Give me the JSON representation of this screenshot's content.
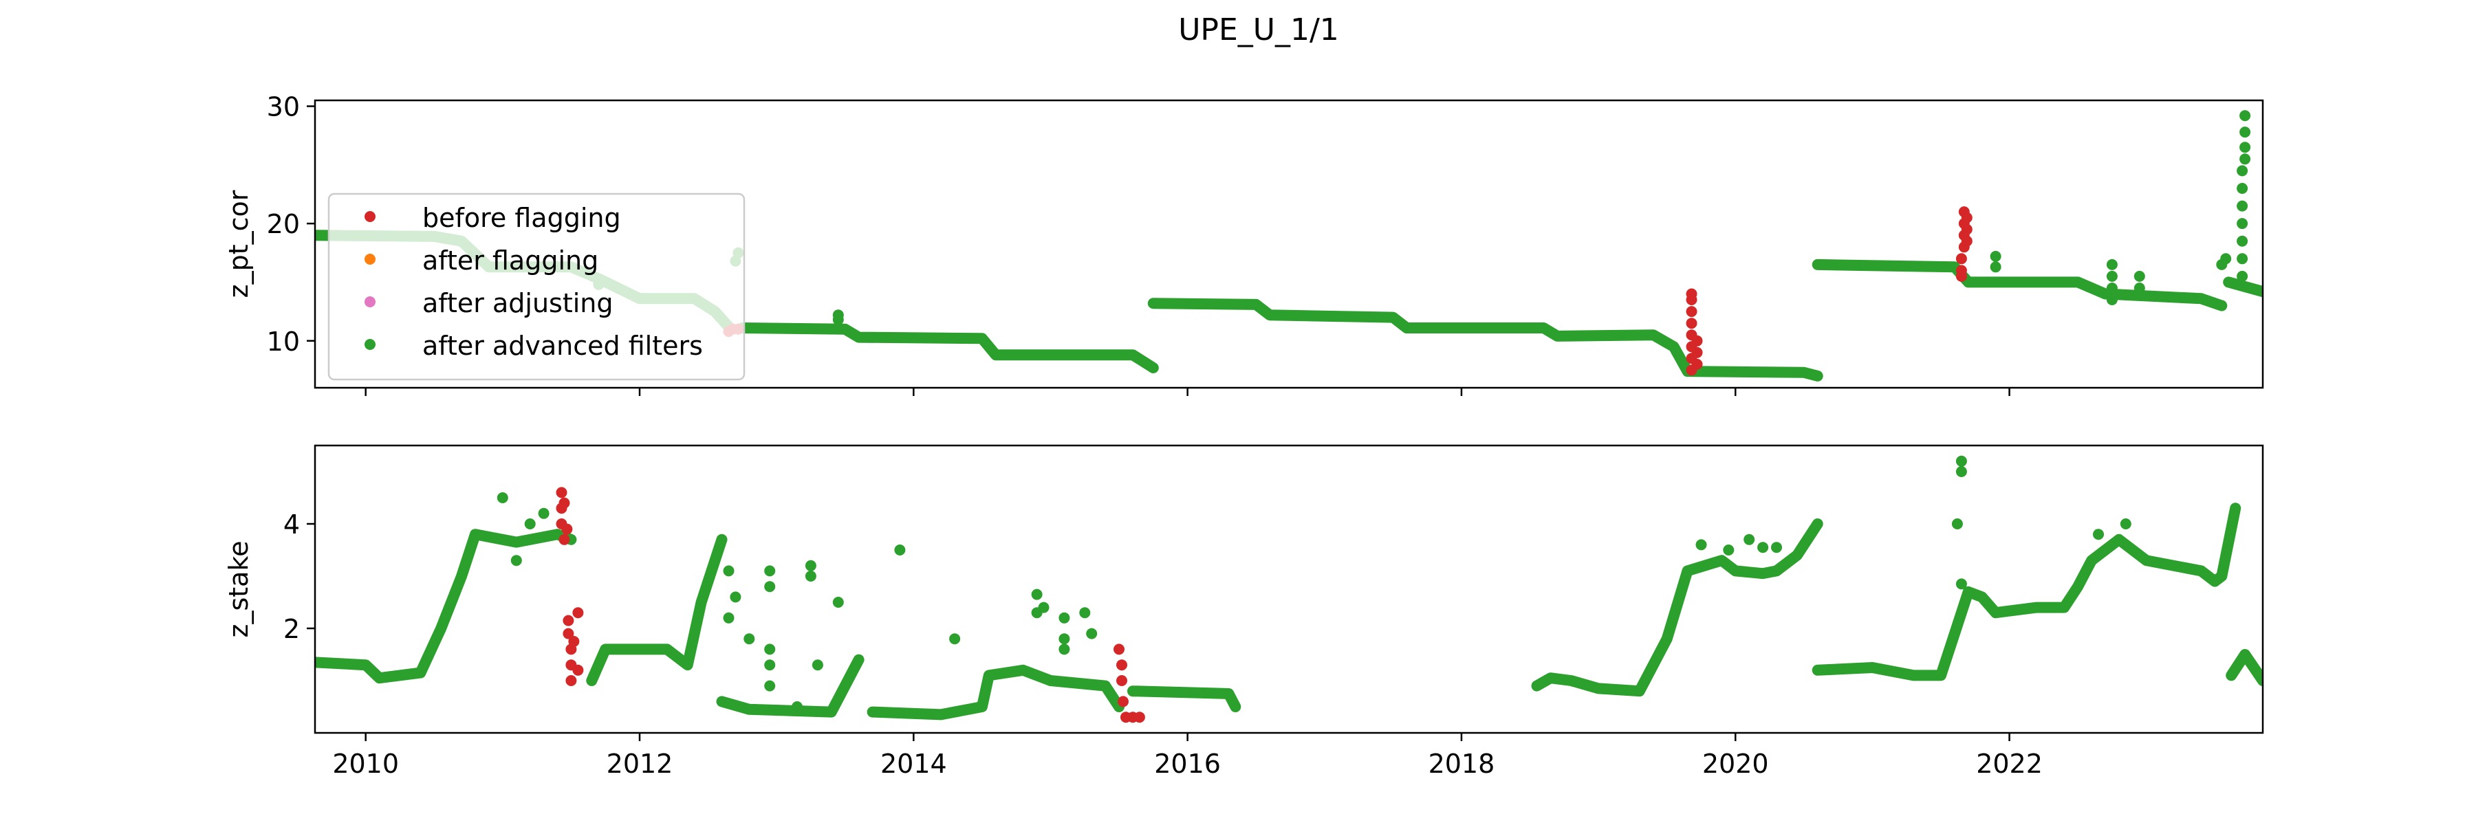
{
  "title": "UPE_U_1/1",
  "colors": {
    "before": "#d62728",
    "after_flagging": "#ff7f0e",
    "after_adjusting": "#e377c2",
    "advanced": "#2ca02c"
  },
  "legend": {
    "placement": "left",
    "entries": [
      {
        "label": "before flagging",
        "color": "#d62728"
      },
      {
        "label": "after flagging",
        "color": "#ff7f0e"
      },
      {
        "label": "after adjusting",
        "color": "#e377c2"
      },
      {
        "label": "after advanced filters",
        "color": "#2ca02c"
      }
    ]
  },
  "chart_data": [
    {
      "type": "scatter",
      "ylabel": "z_pt_cor",
      "xlim": [
        2009.63,
        2023.85
      ],
      "ylim": [
        6,
        30.5
      ],
      "yticks": [
        "10",
        "20",
        "30"
      ],
      "ytick_values": [
        10,
        20,
        30
      ],
      "xtick_values": [
        2010,
        2012,
        2014,
        2016,
        2018,
        2020,
        2022
      ],
      "xticklabels": [],
      "series": [
        {
          "color": "before",
          "kind": "points",
          "points": [
            [
              2012.65,
              10.8
            ],
            [
              2012.68,
              11.0
            ],
            [
              2012.72,
              11.0
            ],
            [
              2019.68,
              7.5
            ],
            [
              2019.68,
              8.5
            ],
            [
              2019.68,
              9.5
            ],
            [
              2019.68,
              10.5
            ],
            [
              2019.68,
              11.5
            ],
            [
              2019.68,
              12.5
            ],
            [
              2019.68,
              13.5
            ],
            [
              2019.68,
              14.0
            ],
            [
              2019.72,
              8.0
            ],
            [
              2019.72,
              9.0
            ],
            [
              2019.72,
              10.0
            ],
            [
              2021.65,
              15.5
            ],
            [
              2021.65,
              16.0
            ],
            [
              2021.65,
              17.0
            ],
            [
              2021.67,
              18.0
            ],
            [
              2021.67,
              19.0
            ],
            [
              2021.67,
              20.0
            ],
            [
              2021.67,
              21.0
            ],
            [
              2021.69,
              18.5
            ],
            [
              2021.69,
              19.5
            ],
            [
              2021.69,
              20.5
            ]
          ]
        },
        {
          "color": "advanced",
          "kind": "track",
          "segments": [
            [
              [
                2009.63,
                19.0
              ],
              [
                2010.5,
                18.9
              ],
              [
                2010.7,
                18.5
              ],
              [
                2010.9,
                16.3
              ],
              [
                2011.5,
                16.3
              ],
              [
                2011.7,
                15.3
              ],
              [
                2012.0,
                13.6
              ],
              [
                2012.4,
                13.6
              ],
              [
                2012.55,
                12.5
              ],
              [
                2012.65,
                11.2
              ]
            ],
            [
              [
                2012.75,
                11.1
              ],
              [
                2013.5,
                11.0
              ],
              [
                2013.6,
                10.3
              ],
              [
                2014.5,
                10.2
              ],
              [
                2014.6,
                8.8
              ],
              [
                2015.6,
                8.8
              ],
              [
                2015.75,
                7.7
              ]
            ],
            [
              [
                2015.75,
                13.2
              ],
              [
                2016.5,
                13.1
              ],
              [
                2016.6,
                12.2
              ],
              [
                2017.5,
                12.0
              ],
              [
                2017.6,
                11.1
              ],
              [
                2018.6,
                11.1
              ],
              [
                2018.7,
                10.4
              ],
              [
                2019.4,
                10.5
              ],
              [
                2019.55,
                9.5
              ],
              [
                2019.65,
                7.4
              ],
              [
                2020.5,
                7.3
              ],
              [
                2020.6,
                7.0
              ]
            ],
            [
              [
                2020.6,
                16.5
              ],
              [
                2021.6,
                16.3
              ],
              [
                2021.7,
                15.0
              ],
              [
                2022.5,
                15.0
              ],
              [
                2022.7,
                14.0
              ],
              [
                2023.4,
                13.6
              ],
              [
                2023.55,
                13.0
              ]
            ],
            [
              [
                2023.6,
                15.0
              ],
              [
                2023.85,
                14.2
              ]
            ]
          ]
        },
        {
          "color": "advanced",
          "kind": "points",
          "points": [
            [
              2011.7,
              14.8
            ],
            [
              2012.7,
              16.8
            ],
            [
              2012.72,
              17.5
            ],
            [
              2013.45,
              12.2
            ],
            [
              2013.45,
              11.8
            ],
            [
              2021.9,
              17.2
            ],
            [
              2021.9,
              16.3
            ],
            [
              2022.75,
              16.5
            ],
            [
              2022.75,
              15.5
            ],
            [
              2022.75,
              14.5
            ],
            [
              2022.75,
              13.5
            ],
            [
              2022.95,
              15.5
            ],
            [
              2022.95,
              14.5
            ],
            [
              2023.55,
              16.5
            ],
            [
              2023.58,
              17.0
            ],
            [
              2023.7,
              15.5
            ],
            [
              2023.7,
              17.0
            ],
            [
              2023.7,
              18.5
            ],
            [
              2023.7,
              20.0
            ],
            [
              2023.7,
              21.5
            ],
            [
              2023.7,
              23.0
            ],
            [
              2023.7,
              24.5
            ],
            [
              2023.72,
              25.5
            ],
            [
              2023.72,
              26.5
            ],
            [
              2023.72,
              27.8
            ],
            [
              2023.72,
              29.2
            ]
          ]
        }
      ]
    },
    {
      "type": "scatter",
      "ylabel": "z_stake",
      "xlim": [
        2009.63,
        2023.85
      ],
      "ylim": [
        0.0,
        5.5
      ],
      "yticks": [
        "2",
        "4"
      ],
      "ytick_values": [
        2,
        4
      ],
      "xtick_values": [
        2010,
        2012,
        2014,
        2016,
        2018,
        2020,
        2022
      ],
      "xticklabels": [
        "2010",
        "2012",
        "2014",
        "2016",
        "2018",
        "2020",
        "2022"
      ],
      "series": [
        {
          "color": "advanced",
          "kind": "track",
          "segments": [
            [
              [
                2009.63,
                1.35
              ],
              [
                2010.0,
                1.3
              ],
              [
                2010.1,
                1.05
              ],
              [
                2010.4,
                1.15
              ],
              [
                2010.55,
                2.0
              ],
              [
                2010.7,
                3.0
              ],
              [
                2010.8,
                3.8
              ],
              [
                2011.1,
                3.65
              ],
              [
                2011.4,
                3.8
              ],
              [
                2011.5,
                3.7
              ]
            ],
            [
              [
                2011.65,
                1.0
              ],
              [
                2011.75,
                1.6
              ],
              [
                2012.2,
                1.6
              ],
              [
                2012.35,
                1.3
              ],
              [
                2012.45,
                2.5
              ],
              [
                2012.6,
                3.7
              ]
            ],
            [
              [
                2012.6,
                0.6
              ],
              [
                2012.8,
                0.45
              ],
              [
                2013.4,
                0.4
              ],
              [
                2013.6,
                1.4
              ]
            ],
            [
              [
                2013.7,
                0.4
              ],
              [
                2014.2,
                0.35
              ],
              [
                2014.5,
                0.5
              ],
              [
                2014.55,
                1.1
              ],
              [
                2014.8,
                1.2
              ],
              [
                2015.0,
                1.0
              ],
              [
                2015.4,
                0.9
              ],
              [
                2015.5,
                0.5
              ]
            ],
            [
              [
                2015.6,
                0.8
              ],
              [
                2016.3,
                0.75
              ],
              [
                2016.35,
                0.5
              ]
            ],
            [
              [
                2018.55,
                0.9
              ],
              [
                2018.65,
                1.05
              ],
              [
                2018.8,
                1.0
              ],
              [
                2019.0,
                0.85
              ],
              [
                2019.3,
                0.8
              ],
              [
                2019.5,
                1.8
              ],
              [
                2019.65,
                3.1
              ],
              [
                2019.9,
                3.3
              ],
              [
                2020.0,
                3.1
              ],
              [
                2020.2,
                3.05
              ],
              [
                2020.3,
                3.1
              ],
              [
                2020.45,
                3.4
              ],
              [
                2020.6,
                4.0
              ]
            ],
            [
              [
                2020.6,
                1.2
              ],
              [
                2021.0,
                1.25
              ],
              [
                2021.3,
                1.1
              ],
              [
                2021.5,
                1.1
              ],
              [
                2021.6,
                1.9
              ],
              [
                2021.7,
                2.7
              ],
              [
                2021.8,
                2.6
              ],
              [
                2021.9,
                2.3
              ],
              [
                2022.2,
                2.4
              ],
              [
                2022.4,
                2.4
              ],
              [
                2022.5,
                2.8
              ],
              [
                2022.6,
                3.3
              ],
              [
                2022.8,
                3.7
              ],
              [
                2023.0,
                3.3
              ],
              [
                2023.4,
                3.1
              ],
              [
                2023.5,
                2.9
              ],
              [
                2023.55,
                3.0
              ],
              [
                2023.65,
                4.3
              ]
            ],
            [
              [
                2023.62,
                1.1
              ],
              [
                2023.72,
                1.5
              ],
              [
                2023.85,
                1.0
              ]
            ]
          ]
        },
        {
          "color": "before",
          "kind": "points",
          "points": [
            [
              2011.43,
              4.6
            ],
            [
              2011.43,
              4.3
            ],
            [
              2011.43,
              4.0
            ],
            [
              2011.45,
              3.7
            ],
            [
              2011.45,
              4.4
            ],
            [
              2011.47,
              3.9
            ],
            [
              2011.48,
              2.15
            ],
            [
              2011.48,
              1.9
            ],
            [
              2011.5,
              1.6
            ],
            [
              2011.5,
              1.3
            ],
            [
              2011.5,
              1.0
            ],
            [
              2011.52,
              1.75
            ],
            [
              2011.55,
              2.3
            ],
            [
              2011.55,
              1.2
            ],
            [
              2015.5,
              1.6
            ],
            [
              2015.52,
              1.3
            ],
            [
              2015.52,
              1.0
            ],
            [
              2015.53,
              0.6
            ],
            [
              2015.55,
              0.3
            ],
            [
              2015.6,
              0.3
            ],
            [
              2015.65,
              0.3
            ]
          ]
        },
        {
          "color": "advanced",
          "kind": "points",
          "points": [
            [
              2011.0,
              4.5
            ],
            [
              2011.2,
              4.0
            ],
            [
              2011.3,
              4.2
            ],
            [
              2011.1,
              3.3
            ],
            [
              2012.65,
              3.1
            ],
            [
              2012.7,
              2.6
            ],
            [
              2012.65,
              2.2
            ],
            [
              2012.95,
              3.1
            ],
            [
              2012.95,
              2.8
            ],
            [
              2013.25,
              3.2
            ],
            [
              2013.25,
              3.0
            ],
            [
              2013.45,
              2.5
            ],
            [
              2012.8,
              1.8
            ],
            [
              2012.95,
              1.6
            ],
            [
              2012.95,
              1.3
            ],
            [
              2012.95,
              0.9
            ],
            [
              2013.3,
              1.3
            ],
            [
              2013.15,
              0.5
            ],
            [
              2013.9,
              3.5
            ],
            [
              2014.3,
              1.8
            ],
            [
              2014.9,
              2.65
            ],
            [
              2014.9,
              2.3
            ],
            [
              2014.95,
              2.4
            ],
            [
              2015.1,
              2.2
            ],
            [
              2015.25,
              2.3
            ],
            [
              2015.3,
              1.9
            ],
            [
              2015.1,
              1.8
            ],
            [
              2015.1,
              1.6
            ],
            [
              2019.75,
              3.6
            ],
            [
              2019.95,
              3.5
            ],
            [
              2020.1,
              3.7
            ],
            [
              2020.2,
              3.55
            ],
            [
              2020.3,
              3.55
            ],
            [
              2021.65,
              5.2
            ],
            [
              2021.65,
              5.0
            ],
            [
              2021.62,
              4.0
            ],
            [
              2021.65,
              2.85
            ],
            [
              2022.85,
              4.0
            ],
            [
              2022.65,
              3.8
            ]
          ]
        }
      ]
    }
  ]
}
